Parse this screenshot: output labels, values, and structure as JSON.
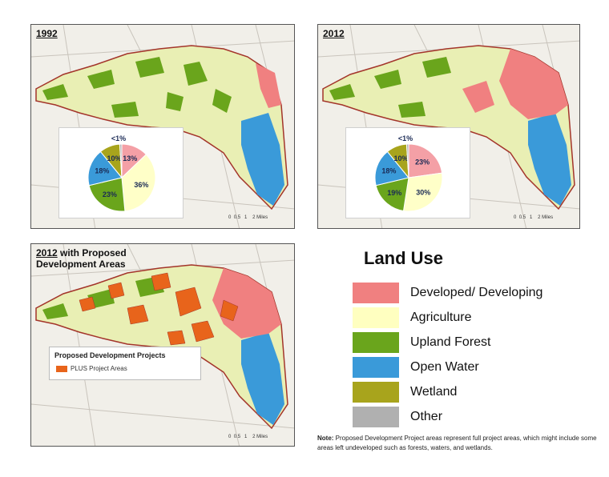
{
  "panels": [
    {
      "id": "p1992",
      "year_label": "1992",
      "subtitle": ""
    },
    {
      "id": "p2012",
      "year_label": "2012",
      "subtitle": ""
    },
    {
      "id": "p2012dev",
      "year_label": "2012",
      "year_suffix": " with Proposed",
      "subtitle": "Development Areas"
    }
  ],
  "proposed_legend": {
    "title": "Proposed Development Projects",
    "item": "PLUS Project Areas",
    "color": "#e8641b"
  },
  "legend": {
    "title": "Land Use",
    "items": [
      {
        "label": "Developed/ Developing",
        "color": "#f08080"
      },
      {
        "label": "Agriculture",
        "color": "#ffffc0"
      },
      {
        "label": "Upland Forest",
        "color": "#6aa51c"
      },
      {
        "label": "Open Water",
        "color": "#3a9ad9"
      },
      {
        "label": "Wetland",
        "color": "#a8a41c"
      },
      {
        "label": "Other",
        "color": "#b0b0b0"
      }
    ]
  },
  "note": {
    "label": "Note:",
    "text": " Proposed Development Project areas represent full project areas, which might include some areas left undeveloped such as forests, waters, and wetlands."
  },
  "scale_labels": [
    "0",
    "0.5",
    "1",
    "2",
    "Miles"
  ],
  "chart_data": [
    {
      "type": "pie",
      "title": "1992",
      "labels": [
        "Developed/ Developing",
        "Agriculture",
        "Upland Forest",
        "Open Water",
        "Wetland",
        "Other"
      ],
      "values": [
        13,
        36,
        23,
        18,
        10,
        1
      ],
      "value_labels": [
        "13%",
        "36%",
        "23%",
        "18%",
        "10%",
        "<1%"
      ],
      "colors": [
        "#f4a0a6",
        "#ffffc8",
        "#6aa51c",
        "#3a9ad9",
        "#a8a41c",
        "#b0b0b0"
      ]
    },
    {
      "type": "pie",
      "title": "2012",
      "labels": [
        "Developed/ Developing",
        "Agriculture",
        "Upland Forest",
        "Open Water",
        "Wetland",
        "Other"
      ],
      "values": [
        23,
        30,
        19,
        18,
        10,
        1
      ],
      "value_labels": [
        "23%",
        "30%",
        "19%",
        "18%",
        "10%",
        "<1%"
      ],
      "colors": [
        "#f4a0a6",
        "#ffffc8",
        "#6aa51c",
        "#3a9ad9",
        "#a8a41c",
        "#b0b0b0"
      ]
    }
  ]
}
